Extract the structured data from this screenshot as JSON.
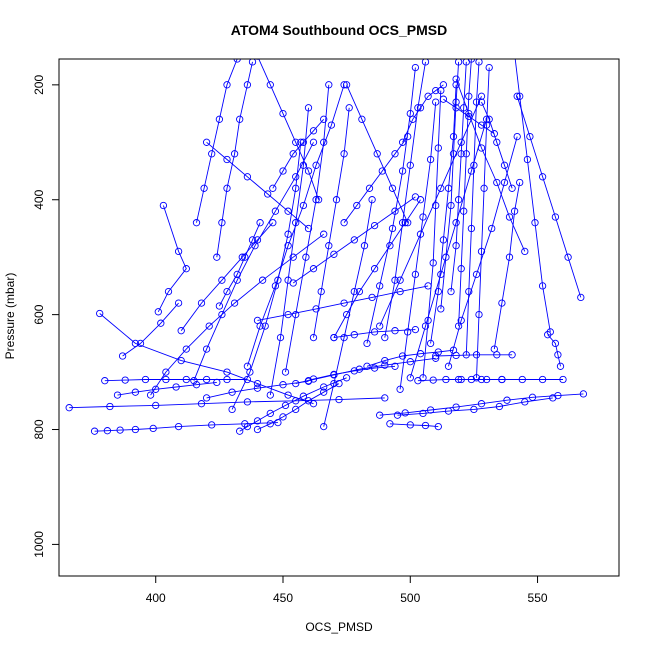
{
  "chart_data": {
    "type": "line",
    "title": "ATOM4 Southbound OCS_PMSD",
    "xlabel": "OCS_PMSD",
    "ylabel": "Pressure (mbar)",
    "xlim": [
      362,
      582
    ],
    "ylim": [
      1055,
      155
    ],
    "y_reversed": true,
    "grid": false,
    "legend": "none",
    "x_ticks": [
      400,
      450,
      500,
      550
    ],
    "y_ticks": [
      200,
      400,
      600,
      800,
      1000
    ],
    "colors": {
      "series": "#0000ff",
      "axis": "#000000",
      "background": "#ffffff"
    },
    "marker": "open-circle",
    "series": [
      {
        "x": [
          432,
          428,
          425,
          422,
          419,
          416
        ],
        "y": [
          155,
          200,
          260,
          320,
          380,
          440
        ]
      },
      {
        "x": [
          403,
          409,
          412,
          405,
          401
        ],
        "y": [
          410,
          490,
          520,
          560,
          595
        ]
      },
      {
        "x": [
          378,
          392,
          410,
          428,
          440,
          452,
          462
        ],
        "y": [
          598,
          650,
          680,
          700,
          720,
          740,
          755
        ]
      },
      {
        "x": [
          387,
          394,
          402,
          409
        ],
        "y": [
          672,
          650,
          615,
          580
        ]
      },
      {
        "x": [
          366,
          382,
          400,
          418,
          436,
          455,
          472,
          490
        ],
        "y": [
          762,
          760,
          758,
          755,
          752,
          750,
          748,
          745
        ]
      },
      {
        "x": [
          376,
          381,
          386,
          392,
          399,
          409,
          422,
          435,
          448
        ],
        "y": [
          803,
          802,
          801,
          800,
          798,
          795,
          792,
          790,
          788
        ]
      },
      {
        "x": [
          440,
          445,
          450,
          455,
          460,
          466,
          472
        ],
        "y": [
          800,
          790,
          778,
          765,
          750,
          735,
          720
        ]
      },
      {
        "x": [
          433,
          436,
          440,
          445,
          451,
          458,
          466,
          475
        ],
        "y": [
          803,
          795,
          785,
          772,
          758,
          742,
          726,
          710
        ]
      },
      {
        "x": [
          430,
          437,
          443,
          448,
          452,
          455,
          457
        ],
        "y": [
          765,
          700,
          620,
          540,
          460,
          380,
          300
        ]
      },
      {
        "x": [
          445,
          449,
          452,
          455,
          458,
          460
        ],
        "y": [
          740,
          640,
          540,
          440,
          340,
          240
        ]
      },
      {
        "x": [
          415,
          420,
          426,
          432,
          439,
          447,
          455,
          462
        ],
        "y": [
          715,
          660,
          600,
          540,
          480,
          420,
          360,
          300
        ]
      },
      {
        "x": [
          398,
          404,
          412,
          421,
          431,
          442,
          454,
          466
        ],
        "y": [
          740,
          700,
          660,
          620,
          580,
          540,
          500,
          460
        ]
      },
      {
        "x": [
          436,
          441,
          447,
          452,
          458,
          463,
          469,
          474
        ],
        "y": [
          690,
          620,
          550,
          480,
          410,
          340,
          270,
          200
        ]
      },
      {
        "x": [
          424,
          426,
          428,
          431,
          433,
          436,
          438
        ],
        "y": [
          500,
          440,
          380,
          320,
          260,
          200,
          160
        ]
      },
      {
        "x": [
          410,
          418,
          426,
          434,
          440,
          446
        ],
        "y": [
          628,
          580,
          540,
          500,
          470,
          440
        ]
      },
      {
        "x": [
          462,
          465,
          468,
          471,
          474,
          476
        ],
        "y": [
          640,
          560,
          480,
          400,
          320,
          240
        ]
      },
      {
        "x": [
          466,
          470,
          474,
          478,
          482,
          485
        ],
        "y": [
          795,
          720,
          640,
          560,
          480,
          400
        ]
      },
      {
        "x": [
          451,
          455,
          459,
          463,
          466,
          468
        ],
        "y": [
          700,
          600,
          500,
          400,
          300,
          200
        ]
      },
      {
        "x": [
          470,
          475,
          480,
          486,
          492,
          498,
          504
        ],
        "y": [
          640,
          600,
          560,
          520,
          480,
          440,
          400
        ]
      },
      {
        "x": [
          454,
          462,
          470,
          478,
          486,
          494,
          502
        ],
        "y": [
          545,
          520,
          495,
          470,
          445,
          420,
          395
        ]
      },
      {
        "x": [
          483,
          488,
          493,
          497,
          500,
          502
        ],
        "y": [
          650,
          550,
          450,
          350,
          250,
          170
        ]
      },
      {
        "x": [
          490,
          494,
          497,
          500,
          503,
          506
        ],
        "y": [
          640,
          540,
          440,
          340,
          240,
          160
        ]
      },
      {
        "x": [
          496,
          499,
          502,
          505,
          508,
          510
        ],
        "y": [
          730,
          630,
          530,
          430,
          330,
          230
        ]
      },
      {
        "x": [
          505,
          507,
          509,
          510,
          511,
          512
        ],
        "y": [
          710,
          610,
          510,
          410,
          310,
          210
        ]
      },
      {
        "x": [
          508,
          511,
          513,
          515,
          517,
          518
        ],
        "y": [
          650,
          560,
          470,
          380,
          290,
          200
        ]
      },
      {
        "x": [
          512,
          514,
          516,
          517,
          518,
          519
        ],
        "y": [
          590,
          500,
          410,
          320,
          230,
          160
        ]
      },
      {
        "x": [
          516,
          518,
          519,
          520,
          521,
          522
        ],
        "y": [
          560,
          480,
          400,
          320,
          240,
          160
        ]
      },
      {
        "x": [
          519,
          520,
          521,
          522,
          523,
          524
        ],
        "y": [
          620,
          520,
          420,
          320,
          220,
          155
        ]
      },
      {
        "x": [
          522,
          523,
          524,
          525,
          526,
          527
        ],
        "y": [
          670,
          560,
          450,
          340,
          230,
          160
        ]
      },
      {
        "x": [
          526,
          527,
          528,
          529,
          530,
          531
        ],
        "y": [
          710,
          600,
          490,
          380,
          270,
          170
        ]
      },
      {
        "x": [
          500,
          506,
          512,
          518,
          524,
          530
        ],
        "y": [
          710,
          620,
          530,
          440,
          350,
          260
        ]
      },
      {
        "x": [
          488,
          496,
          504,
          512,
          520,
          528
        ],
        "y": [
          620,
          540,
          460,
          380,
          300,
          220
        ]
      },
      {
        "x": [
          515,
          520,
          526,
          532,
          537,
          542
        ],
        "y": [
          690,
          610,
          530,
          450,
          370,
          290
        ]
      },
      {
        "x": [
          533,
          536,
          539,
          541,
          543
        ],
        "y": [
          660,
          580,
          500,
          420,
          370
        ]
      },
      {
        "x": [
          545,
          539,
          534,
          528,
          523,
          518
        ],
        "y": [
          490,
          430,
          370,
          310,
          250,
          190
        ]
      },
      {
        "x": [
          567,
          562,
          557,
          552,
          547,
          542
        ],
        "y": [
          570,
          500,
          430,
          360,
          290,
          220
        ]
      },
      {
        "x": [
          540,
          543,
          546,
          549,
          552,
          555
        ],
        "y": [
          110,
          220,
          330,
          440,
          550,
          630
        ]
      },
      {
        "x": [
          554,
          557,
          558,
          559
        ],
        "y": [
          635,
          650,
          670,
          690
        ]
      },
      {
        "x": [
          495,
          505,
          515,
          525,
          535,
          545,
          556
        ],
        "y": [
          775,
          772,
          768,
          765,
          760,
          752,
          745
        ]
      },
      {
        "x": [
          488,
          498,
          508,
          518,
          528,
          538,
          548,
          558,
          568
        ],
        "y": [
          775,
          771,
          766,
          761,
          755,
          749,
          744,
          741,
          738
        ]
      },
      {
        "x": [
          492,
          500,
          506,
          511
        ],
        "y": [
          790,
          792,
          793,
          795
        ]
      },
      {
        "x": [
          503,
          509,
          514,
          519,
          524,
          530,
          536
        ],
        "y": [
          715,
          714,
          713,
          713,
          713,
          713,
          713
        ]
      },
      {
        "x": [
          520,
          528,
          536,
          544,
          552,
          560
        ],
        "y": [
          713,
          713,
          713,
          713,
          713,
          713
        ]
      },
      {
        "x": [
          510,
          518,
          526,
          534,
          540
        ],
        "y": [
          672,
          671,
          670,
          670,
          670
        ]
      },
      {
        "x": [
          483,
          490,
          497,
          504,
          511,
          517
        ],
        "y": [
          690,
          680,
          672,
          668,
          665,
          662
        ]
      },
      {
        "x": [
          460,
          470,
          480,
          490,
          500,
          510
        ],
        "y": [
          715,
          705,
          695,
          688,
          682,
          676
        ]
      },
      {
        "x": [
          470,
          478,
          486,
          494,
          502
        ],
        "y": [
          640,
          635,
          630,
          628,
          626
        ]
      },
      {
        "x": [
          440,
          452,
          463,
          474,
          485,
          496,
          507
        ],
        "y": [
          610,
          600,
          590,
          580,
          570,
          560,
          550
        ]
      },
      {
        "x": [
          380,
          388,
          396,
          404,
          412,
          420,
          428,
          436
        ],
        "y": [
          715,
          714,
          713,
          713,
          713,
          713,
          713,
          713
        ]
      },
      {
        "x": [
          385,
          392,
          400,
          408,
          416,
          424
        ],
        "y": [
          740,
          735,
          730,
          726,
          722,
          718
        ]
      },
      {
        "x": [
          420,
          430,
          440,
          450,
          460
        ],
        "y": [
          745,
          735,
          728,
          722,
          716
        ]
      },
      {
        "x": [
          455,
          462,
          470,
          478,
          486,
          494
        ],
        "y": [
          720,
          712,
          704,
          698,
          693,
          690
        ]
      },
      {
        "x": [
          425,
          428,
          432,
          435,
          438,
          441
        ],
        "y": [
          585,
          560,
          530,
          500,
          470,
          440
        ]
      },
      {
        "x": [
          446,
          450,
          454,
          458,
          462,
          466
        ],
        "y": [
          380,
          350,
          320,
          300,
          280,
          260
        ]
      },
      {
        "x": [
          420,
          428,
          436,
          444,
          452,
          460
        ],
        "y": [
          300,
          330,
          360,
          390,
          420,
          450
        ]
      },
      {
        "x": [
          440,
          445,
          450,
          455,
          460,
          464
        ],
        "y": [
          150,
          200,
          250,
          300,
          350,
          400
        ]
      },
      {
        "x": [
          474,
          479,
          484,
          489,
          494,
          499
        ],
        "y": [
          440,
          410,
          380,
          350,
          320,
          290
        ]
      },
      {
        "x": [
          475,
          481,
          487,
          493,
          499
        ],
        "y": [
          200,
          260,
          320,
          380,
          440
        ]
      },
      {
        "x": [
          497,
          501,
          504,
          507,
          510,
          513
        ],
        "y": [
          300,
          260,
          240,
          220,
          210,
          200
        ]
      },
      {
        "x": [
          513,
          518,
          523,
          528,
          533
        ],
        "y": [
          225,
          240,
          255,
          270,
          285
        ]
      },
      {
        "x": [
          528,
          531,
          534,
          537,
          540
        ],
        "y": [
          230,
          260,
          300,
          340,
          380
        ]
      }
    ]
  }
}
